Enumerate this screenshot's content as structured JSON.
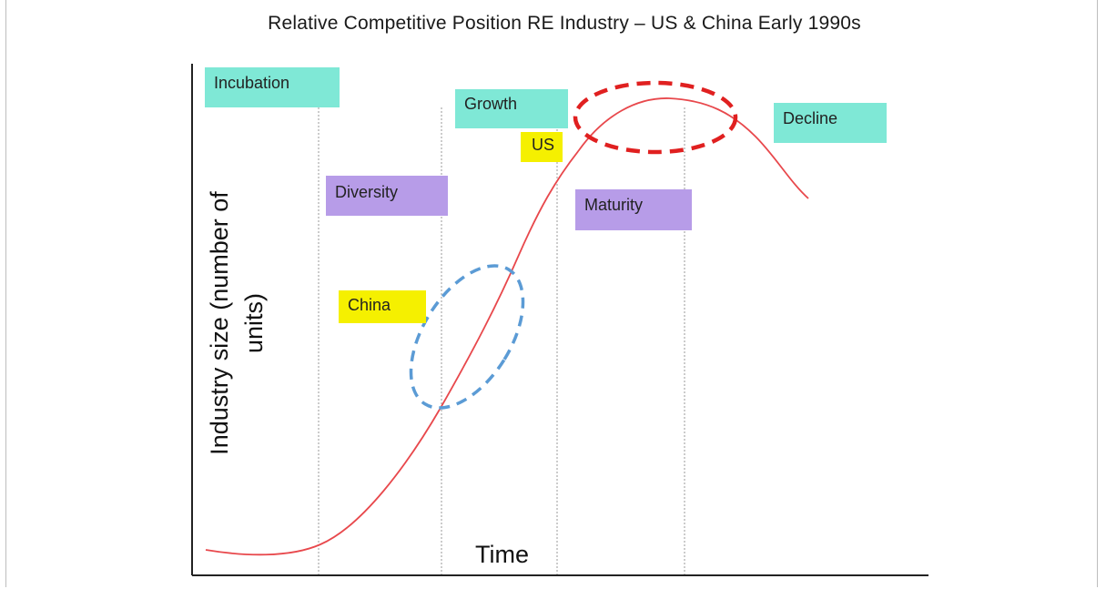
{
  "title": "Relative Competitive Position RE Industry – US & China Early 1990s",
  "axes": {
    "y_label_line1": "Industry size (number of",
    "y_label_line2": "units)",
    "x_label": "Time"
  },
  "stages": {
    "incubation": "Incubation",
    "diversity": "Diversity",
    "growth": "Growth",
    "maturity": "Maturity",
    "decline": "Decline"
  },
  "markers": {
    "us": "US",
    "china": "China"
  },
  "colors": {
    "teal_box": "#7fe8d6",
    "purple_box": "#b79ce8",
    "yellow_box": "#f5f000",
    "curve": "#e8484c",
    "us_ellipse": "#e02020",
    "china_ellipse": "#5b9bd5",
    "divider": "#9a9a9a",
    "axis": "#222222"
  }
}
